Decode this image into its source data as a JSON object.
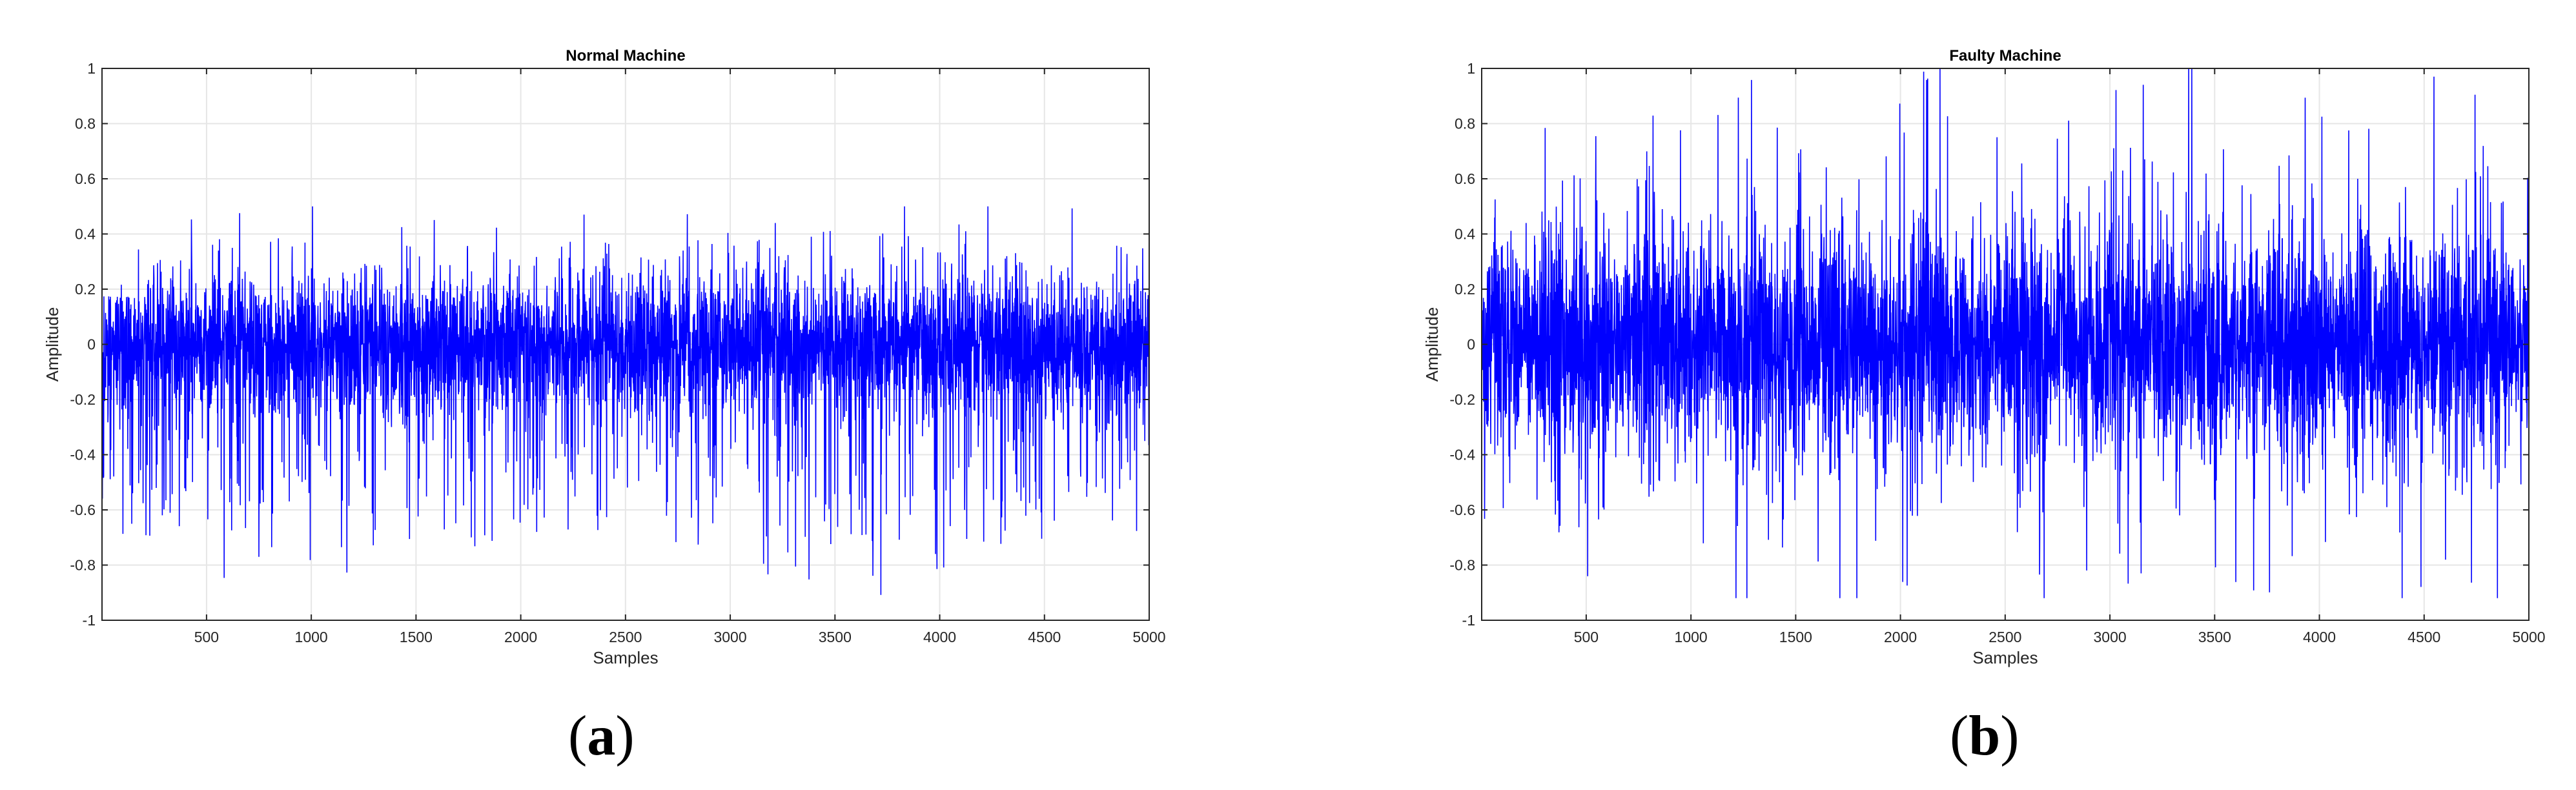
{
  "chart_data": [
    {
      "type": "line",
      "title": "Normal Machine",
      "xlabel": "Samples",
      "ylabel": "Amplitude",
      "xlim": [
        1,
        5000
      ],
      "ylim": [
        -1,
        1
      ],
      "xticks": [
        500,
        1000,
        1500,
        2000,
        2500,
        3000,
        3500,
        4000,
        4500,
        5000
      ],
      "yticks": [
        -1,
        -0.8,
        -0.6,
        -0.4,
        -0.2,
        0,
        0.2,
        0.4,
        0.6,
        0.8,
        1
      ],
      "grid": true,
      "color": "#0000ff",
      "series": [
        {
          "n_samples": 5000,
          "mean": 0.0,
          "typical_range": [
            -0.4,
            0.3
          ],
          "max_peak": 0.5,
          "min_peak": -0.98
        }
      ]
    },
    {
      "type": "line",
      "title": "Faulty Machine",
      "xlabel": "Samples",
      "ylabel": "Amplitude",
      "xlim": [
        1,
        5000
      ],
      "ylim": [
        -1,
        1
      ],
      "xticks": [
        500,
        1000,
        1500,
        2000,
        2500,
        3000,
        3500,
        4000,
        4500,
        5000
      ],
      "yticks": [
        -1,
        -0.8,
        -0.6,
        -0.4,
        -0.2,
        0,
        0.2,
        0.4,
        0.6,
        0.8,
        1
      ],
      "grid": true,
      "color": "#0000ff",
      "series": [
        {
          "n_samples": 5000,
          "mean": 0.0,
          "typical_range": [
            -0.5,
            0.5
          ],
          "max_peak": 1.0,
          "min_peak": -0.92
        }
      ]
    }
  ],
  "panels": {
    "a": {
      "open": "(",
      "letter": "a",
      "close": ")"
    },
    "b": {
      "open": "(",
      "letter": "b",
      "close": ")"
    }
  }
}
